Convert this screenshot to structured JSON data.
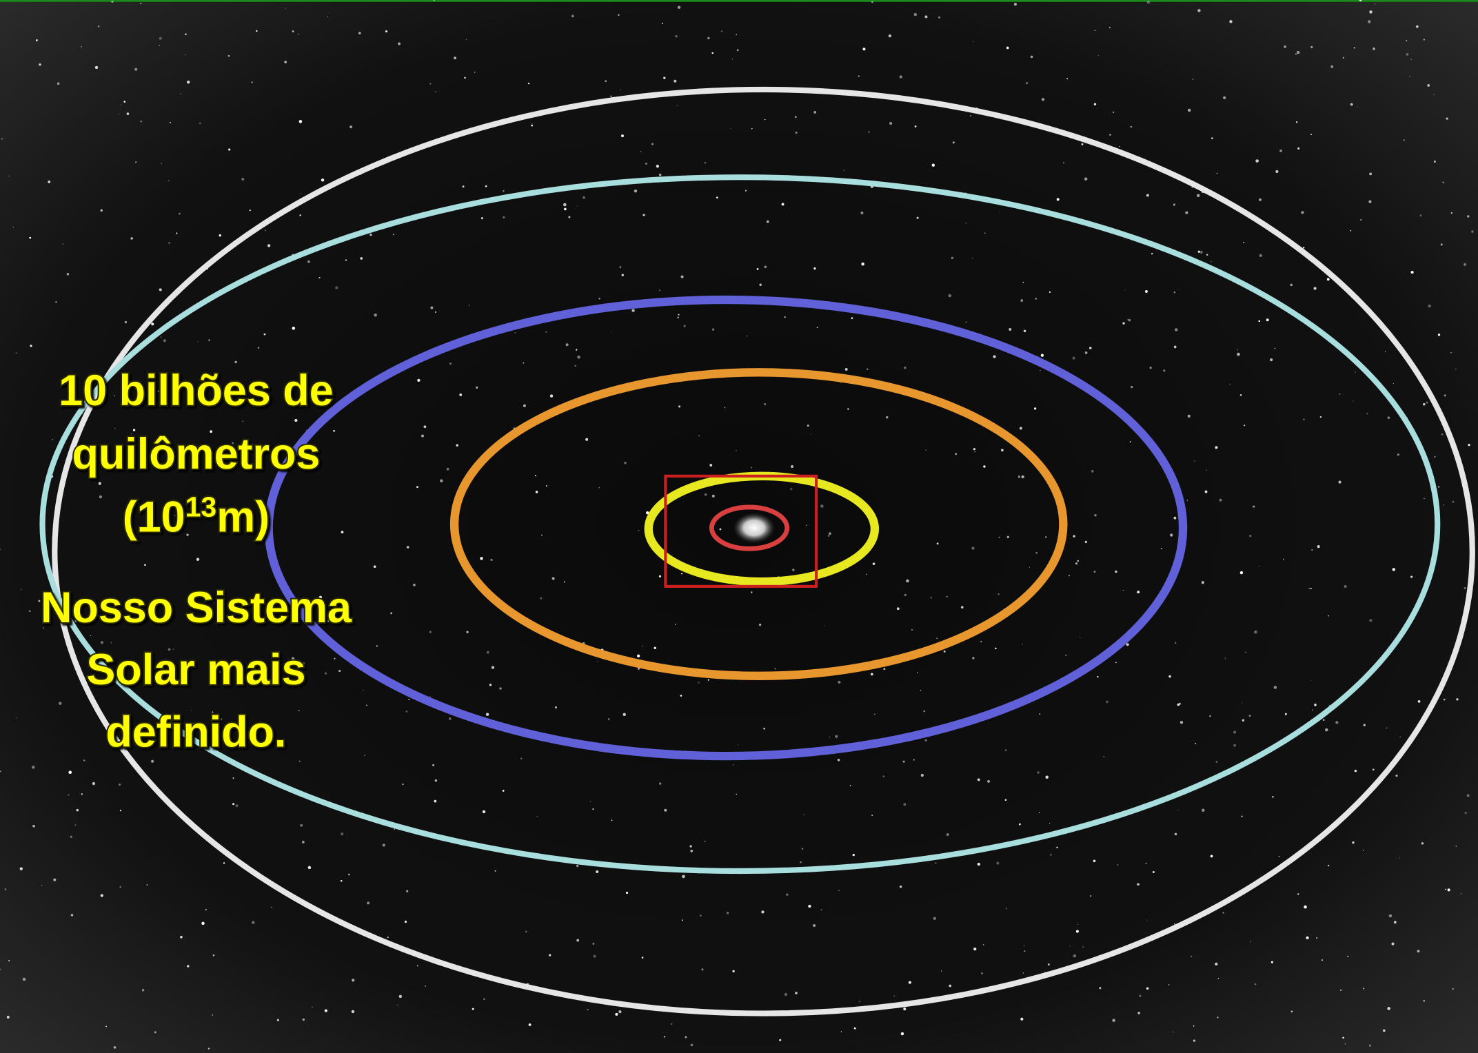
{
  "caption": {
    "lines": [
      "10 bilhões de",
      "quilômetros"
    ],
    "scale": {
      "base": "(10",
      "exponent": "13",
      "unit": "m)"
    }
  },
  "description": {
    "lines": [
      "Nosso Sistema",
      "Solar mais",
      "definido."
    ]
  }
}
